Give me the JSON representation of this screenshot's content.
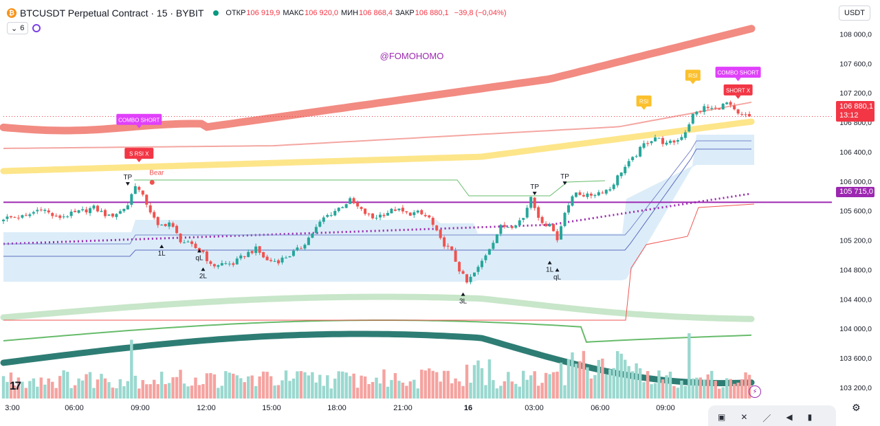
{
  "header": {
    "coin_glyph": "₿",
    "title": "BTCUSDT Perpetual Contract · 15 · BYBIT",
    "open_label": "ОТКР",
    "open": "106 919,9",
    "high_label": "МАКС",
    "high": "106 920,0",
    "low_label": "МИН",
    "low": "106 868,4",
    "close_label": "ЗАКР",
    "close": "106 880,1",
    "change": "−39,8 (−0,04%)",
    "indicator_count": "6",
    "currency": "USDT"
  },
  "watermark": "@FOMOHOMO",
  "price_tag": {
    "price": "106 880,1",
    "countdown": "13:12"
  },
  "level_tag": "105 715,0",
  "icons": {
    "logo": "tradingview-logo-icon",
    "gear": "gear-icon",
    "bolt": "lightning-icon"
  },
  "colors": {
    "up": "#26a69a",
    "down": "#ef5350",
    "accent": "#9c27b0",
    "cloud": "#d6eaf8"
  },
  "chart_data": {
    "type": "candlestick",
    "symbol": "BTCUSDT",
    "interval": "15",
    "y_ticks": [
      108000,
      107600,
      107200,
      106800,
      106400,
      106000,
      105600,
      105200,
      104800,
      104400,
      104000,
      103600,
      103200
    ],
    "y_tick_labels": [
      "108 000,0",
      "107 600,0",
      "107 200,0",
      "106 800,0",
      "106 400,0",
      "106 000,0",
      "105 600,0",
      "105 200,0",
      "104 800,0",
      "104 400,0",
      "104 000,0",
      "103 600,0",
      "103 200,0"
    ],
    "x_tick_labels": [
      "3:00",
      "06:00",
      "09:00",
      "12:00",
      "15:00",
      "18:00",
      "21:00",
      "16",
      "03:00",
      "06:00",
      "09:00"
    ],
    "ylim": [
      103050,
      108200
    ],
    "last_price": 106880.1,
    "horizontal_level": 105715.0,
    "close_path": [
      [
        0,
        105500
      ],
      [
        6,
        105520
      ],
      [
        10,
        105640
      ],
      [
        14,
        105500
      ],
      [
        20,
        105580
      ],
      [
        24,
        105640
      ],
      [
        28,
        105520
      ],
      [
        31,
        105590
      ],
      [
        33,
        105680
      ],
      [
        35,
        105960
      ],
      [
        38,
        105700
      ],
      [
        41,
        105380
      ],
      [
        44,
        105440
      ],
      [
        47,
        105200
      ],
      [
        50,
        105120
      ],
      [
        53,
        105040
      ],
      [
        55,
        104850
      ],
      [
        58,
        104880
      ],
      [
        61,
        104880
      ],
      [
        64,
        105000
      ],
      [
        67,
        105080
      ],
      [
        70,
        104920
      ],
      [
        73,
        104920
      ],
      [
        76,
        105000
      ],
      [
        79,
        105100
      ],
      [
        82,
        105300
      ],
      [
        85,
        105500
      ],
      [
        88,
        105600
      ],
      [
        92,
        105740
      ],
      [
        95,
        105600
      ],
      [
        98,
        105500
      ],
      [
        101,
        105560
      ],
      [
        104,
        105620
      ],
      [
        107,
        105560
      ],
      [
        110,
        105570
      ],
      [
        113,
        105500
      ],
      [
        116,
        105200
      ],
      [
        119,
        105040
      ],
      [
        121,
        104800
      ],
      [
        123,
        104620
      ],
      [
        126,
        104820
      ],
      [
        129,
        105100
      ],
      [
        132,
        105380
      ],
      [
        135,
        105400
      ],
      [
        138,
        105500
      ],
      [
        140,
        105800
      ],
      [
        143,
        105400
      ],
      [
        145,
        105440
      ],
      [
        147,
        105200
      ],
      [
        149,
        105600
      ],
      [
        152,
        105850
      ],
      [
        155,
        105800
      ],
      [
        158,
        105850
      ],
      [
        161,
        105900
      ],
      [
        164,
        106140
      ],
      [
        167,
        106300
      ],
      [
        170,
        106500
      ],
      [
        173,
        106600
      ],
      [
        176,
        106500
      ],
      [
        179,
        106560
      ],
      [
        181,
        106680
      ],
      [
        183,
        106900
      ],
      [
        186,
        107000
      ],
      [
        189,
        106980
      ],
      [
        192,
        107060
      ],
      [
        195,
        106900
      ],
      [
        198,
        106880
      ]
    ],
    "candle_count": 199,
    "volume_spikes": [
      [
        34,
        0.9
      ],
      [
        163,
        0.65
      ],
      [
        182,
        1.0
      ]
    ],
    "annotations": {
      "labels": [
        {
          "text": "COMBO SHORT",
          "bar": 36,
          "price": 106840,
          "kind": "combo"
        },
        {
          "text": "S RSI X",
          "bar": 36,
          "price": 106380,
          "kind": "short-x"
        },
        {
          "text": "RSI",
          "bar": 170,
          "price": 107090,
          "kind": "rsi"
        },
        {
          "text": "RSI",
          "bar": 183,
          "price": 107440,
          "kind": "rsi"
        },
        {
          "text": "COMBO SHORT",
          "bar": 195,
          "price": 107480,
          "kind": "combo"
        },
        {
          "text": "SHORT X",
          "bar": 195,
          "price": 107240,
          "kind": "short-x"
        }
      ],
      "markers": [
        {
          "text": "TP",
          "bar": 33,
          "price": 105950,
          "side": "above"
        },
        {
          "text": "Bear",
          "bar": 38,
          "price": 106050,
          "side": "above"
        },
        {
          "text": "1L",
          "bar": 42,
          "price": 105140,
          "side": "below"
        },
        {
          "text": "qL",
          "bar": 52,
          "price": 105080,
          "side": "below"
        },
        {
          "text": "2L",
          "bar": 53,
          "price": 104830,
          "side": "below"
        },
        {
          "text": "3L",
          "bar": 122,
          "price": 104490,
          "side": "below"
        },
        {
          "text": "TP",
          "bar": 141,
          "price": 105820,
          "side": "above"
        },
        {
          "text": "TP",
          "bar": 149,
          "price": 105960,
          "side": "above"
        },
        {
          "text": "1L",
          "bar": 145,
          "price": 104920,
          "side": "below"
        },
        {
          "text": "qL",
          "bar": 147,
          "price": 104820,
          "side": "below"
        }
      ]
    }
  }
}
